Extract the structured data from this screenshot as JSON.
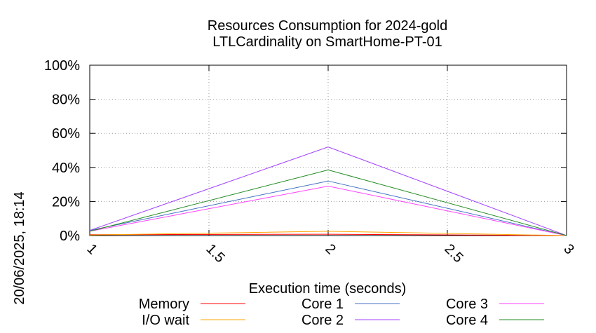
{
  "chart_data": {
    "type": "line",
    "title": [
      "Resources Consumption for 2024-gold",
      "LTLCardinality on SmartHome-PT-01"
    ],
    "xlabel": "Execution time (seconds)",
    "ylabel": "",
    "xlim": [
      1,
      3
    ],
    "ylim": [
      0,
      100
    ],
    "x_ticks": [
      "1",
      "1.5",
      "2",
      "2.5",
      "3"
    ],
    "y_ticks": [
      "0%",
      "20%",
      "40%",
      "60%",
      "80%",
      "100%"
    ],
    "grid": true,
    "legend_position": "bottom",
    "side_note": "20/06/2025, 18:14",
    "x": [
      1,
      2,
      3
    ],
    "series": [
      {
        "name": "Memory",
        "color": "#ff0000",
        "values": [
          0.5,
          0.8,
          0
        ]
      },
      {
        "name": "I/O wait",
        "color": "#ffa500",
        "values": [
          0.3,
          2.5,
          0
        ]
      },
      {
        "name": "Core 1",
        "color": "#4472c4",
        "values": [
          3,
          32,
          0
        ]
      },
      {
        "name": "Core 2",
        "color": "#a040ff",
        "values": [
          3,
          52,
          0
        ]
      },
      {
        "name": "Core 3",
        "color": "#ff40ff",
        "values": [
          2.5,
          29,
          0
        ]
      },
      {
        "name": "Core 4",
        "color": "#228b22",
        "values": [
          2.5,
          38.5,
          0
        ]
      }
    ]
  }
}
